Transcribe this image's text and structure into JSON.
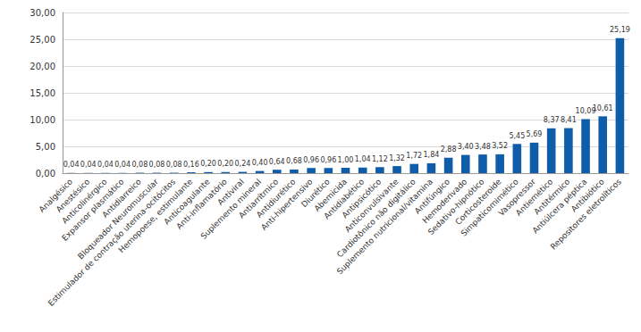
{
  "chart_data": {
    "type": "bar",
    "categories": [
      "Analgésico",
      "Anestésico",
      "Anticolinérgico",
      "Expansor plasmático",
      "Antidiarreico",
      "Bloqueador Neuromuscular",
      "Estimulador de contração uterina-ocitócitos",
      "Hemopoese, estimulante",
      "Anticoagulante",
      "Anti-inflamatório",
      "Antiviral",
      "Suplemento mineral",
      "Antiarrítmico",
      "Antidiurético",
      "Anti-hipertensivo",
      "Diurético",
      "Abemicida",
      "Antidiabético",
      "Antipsicótico",
      "Anticonvulsivante",
      "Cardiotônico não digitálico",
      "Suplemento nutricional/vitamina",
      "Antifúngico",
      "Hemoderivado",
      "Sedativo-hipnótico",
      "Corticosteroide",
      "Simpaticomimético",
      "Vasopressor",
      "Antiemético",
      "Antitérmico",
      "Antiúlcera péptica",
      "Antibiótico",
      "Repositores eletrolíticos"
    ],
    "values": [
      0.04,
      0.04,
      0.04,
      0.04,
      0.08,
      0.08,
      0.08,
      0.16,
      0.2,
      0.2,
      0.24,
      0.4,
      0.64,
      0.68,
      0.96,
      0.96,
      1.0,
      1.04,
      1.12,
      1.32,
      1.72,
      1.84,
      2.88,
      3.4,
      3.48,
      3.52,
      5.45,
      5.69,
      8.37,
      8.41,
      10.09,
      10.61,
      25.19
    ],
    "value_labels": [
      "0,04",
      "0,04",
      "0,04",
      "0,04",
      "0,08",
      "0,08",
      "0,08",
      "0,16",
      "0,20",
      "0,20",
      "0,24",
      "0,40",
      "0,64",
      "0,68",
      "0,96",
      "0,96",
      "1,00",
      "1,04",
      "1,12",
      "1,32",
      "1,72",
      "1,84",
      "2,88",
      "3,40",
      "3,48",
      "3,52",
      "5,45",
      "5,69",
      "8,37",
      "8,41",
      "10,09",
      "10,61",
      "25,19"
    ],
    "data_labels": true,
    "color": "#0f5ca8",
    "ylim": [
      0,
      30
    ],
    "yticks": [
      {
        "value": 0,
        "label": "0,00"
      },
      {
        "value": 5,
        "label": "5,00"
      },
      {
        "value": 10,
        "label": "10,00"
      },
      {
        "value": 15,
        "label": "15,00"
      },
      {
        "value": 20,
        "label": "20,00"
      },
      {
        "value": 25,
        "label": "25,00"
      },
      {
        "value": 30,
        "label": "30,00"
      }
    ],
    "grid": true
  }
}
